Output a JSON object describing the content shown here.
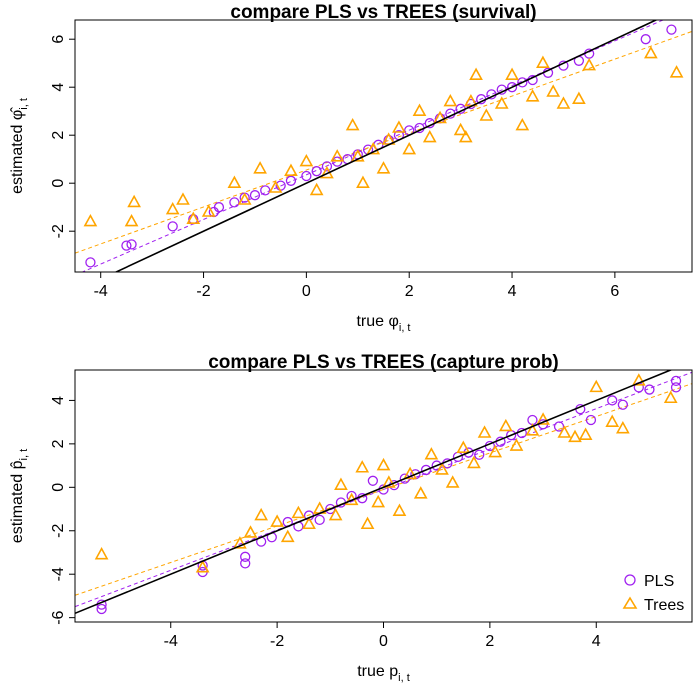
{
  "colors": {
    "pls": "#a020f0",
    "trees": "#ffa500",
    "identity": "#000000"
  },
  "legend": {
    "position": "bottom-right",
    "items": [
      {
        "label": "PLS",
        "marker": "circle",
        "color": "#a020f0"
      },
      {
        "label": "Trees",
        "marker": "triangle",
        "color": "#ffa500"
      }
    ]
  },
  "chart_data": [
    {
      "type": "scatter",
      "title": "compare PLS vs TREES (survival)",
      "xlabel": {
        "prefix": "true ",
        "symbol": "φ",
        "subscript": "i, t",
        "hat": false
      },
      "ylabel": {
        "prefix": "estimated ",
        "symbol": "φ",
        "subscript": "i, t",
        "hat": true
      },
      "xlim": [
        -4.5,
        7.5
      ],
      "ylim": [
        -3.7,
        6.8
      ],
      "xticks": [
        "-4",
        "-2",
        "0",
        "2",
        "4",
        "6"
      ],
      "yticks": [
        "-2",
        "0",
        "2",
        "4",
        "6"
      ],
      "identity_line": {
        "from": [
          -4.5,
          -4.5
        ],
        "to": [
          7.5,
          7.5
        ]
      },
      "fit_lines": [
        {
          "series": "PLS",
          "slope": 0.93,
          "intercept": 0.35
        },
        {
          "series": "Trees",
          "slope": 0.77,
          "intercept": 0.55
        }
      ],
      "series": [
        {
          "name": "PLS",
          "marker": "circle",
          "points": [
            [
              -4.2,
              -3.3
            ],
            [
              -3.5,
              -2.6
            ],
            [
              -3.4,
              -2.55
            ],
            [
              -2.6,
              -1.8
            ],
            [
              -2.2,
              -1.5
            ],
            [
              -1.8,
              -1.2
            ],
            [
              -1.7,
              -1.0
            ],
            [
              -1.4,
              -0.8
            ],
            [
              -1.2,
              -0.6
            ],
            [
              -1.0,
              -0.5
            ],
            [
              -0.8,
              -0.3
            ],
            [
              -0.5,
              -0.1
            ],
            [
              -0.3,
              0.1
            ],
            [
              0.0,
              0.3
            ],
            [
              0.2,
              0.5
            ],
            [
              0.4,
              0.7
            ],
            [
              0.6,
              0.9
            ],
            [
              0.8,
              1.0
            ],
            [
              1.0,
              1.2
            ],
            [
              1.2,
              1.4
            ],
            [
              1.4,
              1.6
            ],
            [
              1.6,
              1.8
            ],
            [
              1.8,
              2.0
            ],
            [
              2.0,
              2.2
            ],
            [
              2.2,
              2.3
            ],
            [
              2.4,
              2.5
            ],
            [
              2.6,
              2.7
            ],
            [
              2.8,
              2.9
            ],
            [
              3.0,
              3.1
            ],
            [
              3.2,
              3.3
            ],
            [
              3.4,
              3.5
            ],
            [
              3.6,
              3.7
            ],
            [
              3.8,
              3.9
            ],
            [
              4.0,
              4.0
            ],
            [
              4.2,
              4.2
            ],
            [
              4.4,
              4.3
            ],
            [
              4.7,
              4.6
            ],
            [
              5.0,
              4.9
            ],
            [
              5.3,
              5.1
            ],
            [
              5.5,
              5.4
            ],
            [
              6.6,
              6.0
            ],
            [
              7.1,
              6.4
            ]
          ]
        },
        {
          "name": "Trees",
          "marker": "triangle",
          "points": [
            [
              -4.2,
              -1.6
            ],
            [
              -3.4,
              -1.6
            ],
            [
              -3.35,
              -0.8
            ],
            [
              -2.6,
              -1.1
            ],
            [
              -2.4,
              -0.7
            ],
            [
              -2.2,
              -1.5
            ],
            [
              -1.9,
              -1.2
            ],
            [
              -1.4,
              0.0
            ],
            [
              -1.2,
              -0.7
            ],
            [
              -0.9,
              0.6
            ],
            [
              -0.6,
              -0.2
            ],
            [
              -0.3,
              0.5
            ],
            [
              0.0,
              0.9
            ],
            [
              0.2,
              -0.3
            ],
            [
              0.4,
              0.4
            ],
            [
              0.6,
              1.1
            ],
            [
              0.9,
              2.4
            ],
            [
              1.0,
              1.1
            ],
            [
              1.1,
              0.0
            ],
            [
              1.3,
              1.4
            ],
            [
              1.5,
              0.6
            ],
            [
              1.6,
              1.8
            ],
            [
              1.8,
              2.3
            ],
            [
              2.0,
              1.4
            ],
            [
              2.2,
              3.0
            ],
            [
              2.4,
              1.9
            ],
            [
              2.6,
              2.7
            ],
            [
              2.8,
              3.4
            ],
            [
              3.0,
              2.2
            ],
            [
              3.1,
              1.9
            ],
            [
              3.2,
              3.4
            ],
            [
              3.3,
              4.5
            ],
            [
              3.5,
              2.8
            ],
            [
              3.8,
              3.3
            ],
            [
              4.0,
              4.5
            ],
            [
              4.2,
              2.4
            ],
            [
              4.4,
              3.6
            ],
            [
              4.6,
              5.0
            ],
            [
              4.8,
              3.8
            ],
            [
              5.0,
              3.3
            ],
            [
              5.3,
              3.5
            ],
            [
              5.5,
              4.9
            ],
            [
              6.7,
              5.4
            ],
            [
              7.2,
              4.6
            ]
          ]
        }
      ]
    },
    {
      "type": "scatter",
      "title": "compare PLS vs TREES (capture prob)",
      "xlabel": {
        "prefix": "true ",
        "symbol": "p",
        "subscript": "i, t",
        "hat": false
      },
      "ylabel": {
        "prefix": "estimated ",
        "symbol": "p",
        "subscript": "i, t",
        "hat": true
      },
      "xlim": [
        -5.8,
        5.8
      ],
      "ylim": [
        -6.2,
        5.4
      ],
      "xticks": [
        "-4",
        "-2",
        "0",
        "2",
        "4"
      ],
      "yticks": [
        "-6",
        "-4",
        "-2",
        "0",
        "2",
        "4"
      ],
      "identity_line": {
        "from": [
          -5.8,
          -5.8
        ],
        "to": [
          5.8,
          5.8
        ]
      },
      "fit_lines": [
        {
          "series": "PLS",
          "slope": 0.93,
          "intercept": -0.1
        },
        {
          "series": "Trees",
          "slope": 0.84,
          "intercept": -0.1
        }
      ],
      "series": [
        {
          "name": "PLS",
          "marker": "circle",
          "points": [
            [
              -5.3,
              -5.4
            ],
            [
              -5.3,
              -5.6
            ],
            [
              -3.4,
              -3.6
            ],
            [
              -3.4,
              -3.9
            ],
            [
              -2.6,
              -3.2
            ],
            [
              -2.6,
              -3.5
            ],
            [
              -2.3,
              -2.5
            ],
            [
              -2.1,
              -2.3
            ],
            [
              -1.8,
              -1.6
            ],
            [
              -1.6,
              -1.8
            ],
            [
              -1.4,
              -1.3
            ],
            [
              -1.2,
              -1.5
            ],
            [
              -1.0,
              -1.0
            ],
            [
              -0.8,
              -0.7
            ],
            [
              -0.6,
              -0.4
            ],
            [
              -0.4,
              -0.5
            ],
            [
              -0.2,
              0.3
            ],
            [
              0.0,
              -0.1
            ],
            [
              0.2,
              0.1
            ],
            [
              0.4,
              0.4
            ],
            [
              0.6,
              0.6
            ],
            [
              0.8,
              0.8
            ],
            [
              1.0,
              1.0
            ],
            [
              1.2,
              1.1
            ],
            [
              1.4,
              1.4
            ],
            [
              1.6,
              1.6
            ],
            [
              1.8,
              1.5
            ],
            [
              2.0,
              1.9
            ],
            [
              2.2,
              2.1
            ],
            [
              2.4,
              2.4
            ],
            [
              2.6,
              2.5
            ],
            [
              2.8,
              3.1
            ],
            [
              3.0,
              2.9
            ],
            [
              3.3,
              2.8
            ],
            [
              3.7,
              3.6
            ],
            [
              3.9,
              3.1
            ],
            [
              4.3,
              4.0
            ],
            [
              4.5,
              3.8
            ],
            [
              4.8,
              4.6
            ],
            [
              5.0,
              4.5
            ],
            [
              5.5,
              4.9
            ],
            [
              5.5,
              4.6
            ]
          ]
        },
        {
          "name": "Trees",
          "marker": "triangle",
          "points": [
            [
              -5.3,
              -3.1
            ],
            [
              -3.4,
              -3.7
            ],
            [
              -2.7,
              -2.6
            ],
            [
              -2.5,
              -2.1
            ],
            [
              -2.3,
              -1.3
            ],
            [
              -2.0,
              -1.6
            ],
            [
              -1.8,
              -2.3
            ],
            [
              -1.6,
              -1.2
            ],
            [
              -1.4,
              -1.7
            ],
            [
              -1.2,
              -1.0
            ],
            [
              -0.9,
              -1.3
            ],
            [
              -0.8,
              0.1
            ],
            [
              -0.6,
              -0.6
            ],
            [
              -0.4,
              0.9
            ],
            [
              -0.3,
              -1.7
            ],
            [
              -0.1,
              -0.7
            ],
            [
              0.0,
              1.0
            ],
            [
              0.1,
              0.2
            ],
            [
              0.3,
              -1.1
            ],
            [
              0.5,
              0.6
            ],
            [
              0.7,
              -0.3
            ],
            [
              0.9,
              1.5
            ],
            [
              1.1,
              0.8
            ],
            [
              1.3,
              0.2
            ],
            [
              1.5,
              1.8
            ],
            [
              1.7,
              1.1
            ],
            [
              1.9,
              2.5
            ],
            [
              2.1,
              1.6
            ],
            [
              2.3,
              2.8
            ],
            [
              2.5,
              1.9
            ],
            [
              2.8,
              2.6
            ],
            [
              3.0,
              3.1
            ],
            [
              3.4,
              2.5
            ],
            [
              3.6,
              2.3
            ],
            [
              3.8,
              2.4
            ],
            [
              4.0,
              4.6
            ],
            [
              4.3,
              3.0
            ],
            [
              4.5,
              2.7
            ],
            [
              4.8,
              4.9
            ],
            [
              5.4,
              4.1
            ]
          ]
        }
      ]
    }
  ]
}
